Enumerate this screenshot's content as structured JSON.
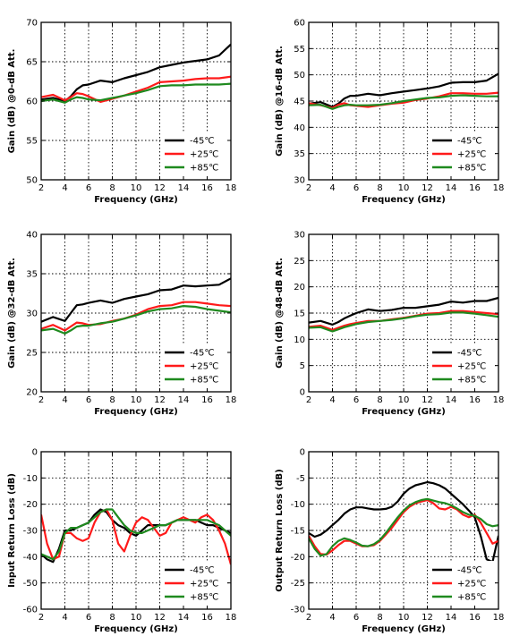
{
  "legend_labels": [
    "-45℃",
    "+25℃",
    "+85℃"
  ],
  "series_colors": [
    "#000000",
    "#ff1a1a",
    "#1f8a1f"
  ],
  "chart_data": [
    {
      "type": "line",
      "xlabel": "Frequency  (GHz)",
      "ylabel": "Gain  (dB)  @0-dB Att.",
      "xlim": [
        2,
        18
      ],
      "ylim": [
        50,
        70
      ],
      "xticks": [
        2,
        4,
        6,
        8,
        10,
        12,
        14,
        16,
        18
      ],
      "yticks": [
        50,
        55,
        60,
        65,
        70
      ],
      "grid": true,
      "legend_position": "lower-right",
      "series": [
        {
          "name": "-45℃",
          "x": [
            2,
            3,
            4,
            4.5,
            5,
            5.5,
            6,
            7,
            8,
            9,
            10,
            11,
            12,
            13,
            14,
            15,
            16,
            17,
            18
          ],
          "y": [
            60.2,
            60.4,
            60.0,
            60.6,
            61.5,
            62.0,
            62.1,
            62.6,
            62.4,
            62.9,
            63.3,
            63.7,
            64.3,
            64.6,
            64.9,
            65.1,
            65.3,
            65.8,
            67.2
          ]
        },
        {
          "name": "+25℃",
          "x": [
            2,
            3,
            4,
            4.5,
            5,
            5.5,
            6,
            7,
            8,
            9,
            10,
            11,
            12,
            13,
            14,
            15,
            16,
            17,
            18
          ],
          "y": [
            60.5,
            60.8,
            60.1,
            60.5,
            61.0,
            60.9,
            60.6,
            59.9,
            60.3,
            60.7,
            61.2,
            61.7,
            62.4,
            62.5,
            62.6,
            62.8,
            62.9,
            62.9,
            63.1
          ]
        },
        {
          "name": "+85℃",
          "x": [
            2,
            3,
            4,
            4.5,
            5,
            5.5,
            6,
            7,
            8,
            9,
            10,
            11,
            12,
            13,
            14,
            15,
            16,
            17,
            18
          ],
          "y": [
            60.0,
            60.2,
            59.8,
            60.2,
            60.5,
            60.4,
            60.2,
            60.1,
            60.4,
            60.7,
            61.0,
            61.4,
            61.9,
            62.0,
            62.0,
            62.1,
            62.1,
            62.1,
            62.2
          ]
        }
      ]
    },
    {
      "type": "line",
      "xlabel": "Frequency  (GHz)",
      "ylabel": "Gain  (dB)  @16-dB Att.",
      "xlim": [
        2,
        18
      ],
      "ylim": [
        30,
        60
      ],
      "xticks": [
        2,
        4,
        6,
        8,
        10,
        12,
        14,
        16,
        18
      ],
      "yticks": [
        30,
        35,
        40,
        45,
        50,
        55,
        60
      ],
      "grid": true,
      "legend_position": "lower-right",
      "series": [
        {
          "name": "-45℃",
          "x": [
            2,
            3,
            4,
            4.5,
            5,
            5.5,
            6,
            7,
            8,
            9,
            10,
            11,
            12,
            13,
            14,
            15,
            16,
            17,
            18
          ],
          "y": [
            44.5,
            44.8,
            43.9,
            44.5,
            45.5,
            46.0,
            46.0,
            46.4,
            46.1,
            46.5,
            46.8,
            47.1,
            47.4,
            47.8,
            48.5,
            48.6,
            48.6,
            48.9,
            50.2
          ]
        },
        {
          "name": "+25℃",
          "x": [
            2,
            3,
            4,
            4.5,
            5,
            5.5,
            6,
            7,
            8,
            9,
            10,
            11,
            12,
            13,
            14,
            15,
            16,
            17,
            18
          ],
          "y": [
            44.6,
            44.2,
            43.7,
            44.3,
            44.6,
            44.2,
            44.1,
            43.9,
            44.2,
            44.5,
            44.7,
            45.2,
            45.5,
            45.9,
            46.5,
            46.5,
            46.4,
            46.4,
            46.6
          ]
        },
        {
          "name": "+85℃",
          "x": [
            2,
            3,
            4,
            4.5,
            5,
            5.5,
            6,
            7,
            8,
            9,
            10,
            11,
            12,
            13,
            14,
            15,
            16,
            17,
            18
          ],
          "y": [
            44.2,
            44.3,
            43.5,
            43.9,
            44.2,
            44.3,
            44.2,
            44.2,
            44.3,
            44.6,
            45.0,
            45.3,
            45.6,
            45.7,
            46.0,
            46.1,
            46.0,
            45.9,
            45.9
          ]
        }
      ]
    },
    {
      "type": "line",
      "xlabel": "Frequency  (GHz)",
      "ylabel": "Gain  (dB)  @32-dB Att.",
      "xlim": [
        2,
        18
      ],
      "ylim": [
        20,
        40
      ],
      "xticks": [
        2,
        4,
        6,
        8,
        10,
        12,
        14,
        16,
        18
      ],
      "yticks": [
        20,
        25,
        30,
        35,
        40
      ],
      "grid": true,
      "legend_position": "lower-right",
      "series": [
        {
          "name": "-45℃",
          "x": [
            2,
            3,
            4,
            4.5,
            5,
            5.5,
            6,
            7,
            8,
            9,
            10,
            11,
            12,
            13,
            14,
            15,
            16,
            17,
            18
          ],
          "y": [
            28.9,
            29.5,
            29.0,
            30.0,
            31.0,
            31.1,
            31.3,
            31.6,
            31.3,
            31.8,
            32.1,
            32.4,
            32.9,
            33.0,
            33.5,
            33.4,
            33.5,
            33.6,
            34.4
          ]
        },
        {
          "name": "+25℃",
          "x": [
            2,
            3,
            4,
            4.5,
            5,
            5.5,
            6,
            7,
            8,
            9,
            10,
            11,
            12,
            13,
            14,
            15,
            16,
            17,
            18
          ],
          "y": [
            28.0,
            28.5,
            27.8,
            28.3,
            28.8,
            28.7,
            28.5,
            28.6,
            29.0,
            29.3,
            29.8,
            30.5,
            30.9,
            31.0,
            31.4,
            31.4,
            31.2,
            31.0,
            30.9
          ]
        },
        {
          "name": "+85℃",
          "x": [
            2,
            3,
            4,
            4.5,
            5,
            5.5,
            6,
            7,
            8,
            9,
            10,
            11,
            12,
            13,
            14,
            15,
            16,
            17,
            18
          ],
          "y": [
            27.8,
            28.0,
            27.4,
            27.8,
            28.3,
            28.4,
            28.4,
            28.7,
            28.9,
            29.3,
            29.7,
            30.2,
            30.5,
            30.6,
            30.9,
            30.8,
            30.5,
            30.3,
            30.1
          ]
        }
      ]
    },
    {
      "type": "line",
      "xlabel": "Frequency  (GHz)",
      "ylabel": "Gain  (dB)  @48-dB Att.",
      "xlim": [
        2,
        18
      ],
      "ylim": [
        0,
        30
      ],
      "xticks": [
        2,
        4,
        6,
        8,
        10,
        12,
        14,
        16,
        18
      ],
      "yticks": [
        0,
        5,
        10,
        15,
        20,
        25,
        30
      ],
      "grid": true,
      "legend_position": "lower-right",
      "series": [
        {
          "name": "-45℃",
          "x": [
            2,
            3,
            4,
            4.5,
            5,
            5.5,
            6,
            7,
            8,
            9,
            10,
            11,
            12,
            13,
            14,
            15,
            16,
            17,
            18
          ],
          "y": [
            13.2,
            13.5,
            12.8,
            13.3,
            14.0,
            14.5,
            15.0,
            15.7,
            15.4,
            15.6,
            16.0,
            16.0,
            16.3,
            16.6,
            17.2,
            17.0,
            17.3,
            17.3,
            17.9
          ]
        },
        {
          "name": "+25℃",
          "x": [
            2,
            3,
            4,
            4.5,
            5,
            5.5,
            6,
            7,
            8,
            9,
            10,
            11,
            12,
            13,
            14,
            15,
            16,
            17,
            18
          ],
          "y": [
            12.4,
            12.6,
            11.8,
            12.2,
            12.6,
            12.9,
            13.1,
            13.5,
            13.5,
            13.8,
            14.1,
            14.5,
            14.9,
            15.0,
            15.4,
            15.4,
            15.2,
            15.0,
            14.8
          ]
        },
        {
          "name": "+85℃",
          "x": [
            2,
            3,
            4,
            4.5,
            5,
            5.5,
            6,
            7,
            8,
            9,
            10,
            11,
            12,
            13,
            14,
            15,
            16,
            17,
            18
          ],
          "y": [
            12.2,
            12.3,
            11.5,
            11.9,
            12.3,
            12.6,
            12.9,
            13.3,
            13.5,
            13.7,
            14.0,
            14.4,
            14.7,
            14.8,
            15.1,
            15.1,
            14.9,
            14.6,
            14.3
          ]
        }
      ]
    },
    {
      "type": "line",
      "xlabel": "Frequency  (GHz)",
      "ylabel": "Input Return Loss  (dB)",
      "xlim": [
        2,
        18
      ],
      "ylim": [
        -60,
        0
      ],
      "xticks": [
        2,
        4,
        6,
        8,
        10,
        12,
        14,
        16,
        18
      ],
      "yticks": [
        -60,
        -50,
        -40,
        -30,
        -20,
        -10,
        0
      ],
      "grid": true,
      "legend_position": "lower-right",
      "series": [
        {
          "name": "-45℃",
          "x": [
            2,
            2.5,
            3,
            3.5,
            4,
            4.5,
            5,
            5.5,
            6,
            6.5,
            7,
            7.5,
            8,
            8.5,
            9,
            9.5,
            10,
            10.5,
            11,
            11.5,
            12,
            12.5,
            13,
            13.5,
            14,
            14.5,
            15,
            15.5,
            16,
            16.5,
            17,
            17.5,
            18
          ],
          "y": [
            -39,
            -41,
            -42,
            -37,
            -30,
            -30,
            -29,
            -28,
            -27,
            -24,
            -22,
            -23,
            -26,
            -28,
            -29,
            -31,
            -32,
            -30,
            -28,
            -28,
            -28,
            -28,
            -27,
            -26,
            -26,
            -26,
            -26,
            -27,
            -28,
            -28,
            -29,
            -30,
            -31
          ]
        },
        {
          "name": "+25℃",
          "x": [
            2,
            2.5,
            3,
            3.5,
            4,
            4.5,
            5,
            5.5,
            6,
            6.5,
            7,
            7.5,
            8,
            8.5,
            9,
            9.5,
            10,
            10.5,
            11,
            11.5,
            12,
            12.5,
            13,
            13.5,
            14,
            14.5,
            15,
            15.5,
            16,
            16.5,
            17,
            17.5,
            18
          ],
          "y": [
            -24,
            -35,
            -41,
            -40,
            -31,
            -31,
            -33,
            -34,
            -33,
            -27,
            -23,
            -22,
            -26,
            -35,
            -38,
            -32,
            -27,
            -25,
            -26,
            -29,
            -32,
            -31,
            -27,
            -26,
            -25,
            -26,
            -27,
            -25,
            -24,
            -26,
            -30,
            -35,
            -43
          ]
        },
        {
          "name": "+85℃",
          "x": [
            2,
            2.5,
            3,
            3.5,
            4,
            4.5,
            5,
            5.5,
            6,
            6.5,
            7,
            7.5,
            8,
            8.5,
            9,
            9.5,
            10,
            10.5,
            11,
            11.5,
            12,
            12.5,
            13,
            13.5,
            14,
            14.5,
            15,
            15.5,
            16,
            16.5,
            17,
            17.5,
            18
          ],
          "y": [
            -39,
            -40,
            -41,
            -38,
            -31,
            -29,
            -29,
            -28,
            -27,
            -25,
            -23,
            -22,
            -22,
            -25,
            -28,
            -30,
            -31,
            -31,
            -30,
            -29,
            -28,
            -28,
            -27,
            -26,
            -26,
            -26,
            -26,
            -26,
            -26,
            -27,
            -28,
            -30,
            -32
          ]
        }
      ]
    },
    {
      "type": "line",
      "xlabel": "Frequency  (GHz)",
      "ylabel": "Output Return Loss  (dB)",
      "xlim": [
        2,
        18
      ],
      "ylim": [
        -30,
        0
      ],
      "xticks": [
        2,
        4,
        6,
        8,
        10,
        12,
        14,
        16,
        18
      ],
      "yticks": [
        -30,
        -25,
        -20,
        -15,
        -10,
        -5,
        0
      ],
      "grid": true,
      "legend_position": "lower-right",
      "series": [
        {
          "name": "-45℃",
          "x": [
            2,
            2.5,
            3,
            3.5,
            4,
            4.5,
            5,
            5.5,
            6,
            6.5,
            7,
            7.5,
            8,
            8.5,
            9,
            9.5,
            10,
            10.5,
            11,
            11.5,
            12,
            12.5,
            13,
            13.5,
            14,
            14.5,
            15,
            15.5,
            16,
            16.5,
            17,
            17.5,
            18
          ],
          "y": [
            -15.5,
            -16.2,
            -15.8,
            -15.0,
            -14.0,
            -13.0,
            -11.8,
            -11.0,
            -10.6,
            -10.6,
            -10.8,
            -11.0,
            -11.0,
            -10.9,
            -10.5,
            -9.5,
            -8.0,
            -7.0,
            -6.4,
            -6.1,
            -5.8,
            -6.0,
            -6.4,
            -7.0,
            -8.0,
            -9.0,
            -10.0,
            -11.2,
            -12.5,
            -16.0,
            -20.5,
            -21.0,
            -16.0
          ]
        },
        {
          "name": "+25℃",
          "x": [
            2,
            2.5,
            3,
            3.5,
            4,
            4.5,
            5,
            5.5,
            6,
            6.5,
            7,
            7.5,
            8,
            8.5,
            9,
            9.5,
            10,
            10.5,
            11,
            11.5,
            12,
            12.5,
            13,
            13.5,
            14,
            14.5,
            15,
            15.5,
            16,
            16.5,
            17,
            17.5,
            18
          ],
          "y": [
            -16.0,
            -18.0,
            -19.5,
            -19.6,
            -18.8,
            -17.8,
            -17.0,
            -17.0,
            -17.5,
            -18.0,
            -18.0,
            -17.8,
            -17.0,
            -15.8,
            -14.5,
            -13.0,
            -11.5,
            -10.5,
            -9.8,
            -9.5,
            -9.2,
            -9.8,
            -10.8,
            -11.0,
            -10.5,
            -11.0,
            -12.0,
            -12.5,
            -12.0,
            -13.5,
            -15.5,
            -17.5,
            -17.0
          ]
        },
        {
          "name": "+85℃",
          "x": [
            2,
            2.5,
            3,
            3.5,
            4,
            4.5,
            5,
            5.5,
            6,
            6.5,
            7,
            7.5,
            8,
            8.5,
            9,
            9.5,
            10,
            10.5,
            11,
            11.5,
            12,
            12.5,
            13,
            13.5,
            14,
            14.5,
            15,
            15.5,
            16,
            16.5,
            17,
            17.5,
            18
          ],
          "y": [
            -16.5,
            -18.5,
            -19.8,
            -19.5,
            -18.0,
            -17.0,
            -16.5,
            -16.8,
            -17.3,
            -17.9,
            -18.0,
            -17.6,
            -16.8,
            -15.5,
            -14.0,
            -12.5,
            -11.2,
            -10.2,
            -9.6,
            -9.2,
            -9.0,
            -9.3,
            -9.6,
            -9.8,
            -10.2,
            -10.8,
            -11.5,
            -12.0,
            -12.2,
            -12.8,
            -13.8,
            -14.2,
            -14.0
          ]
        }
      ]
    }
  ]
}
